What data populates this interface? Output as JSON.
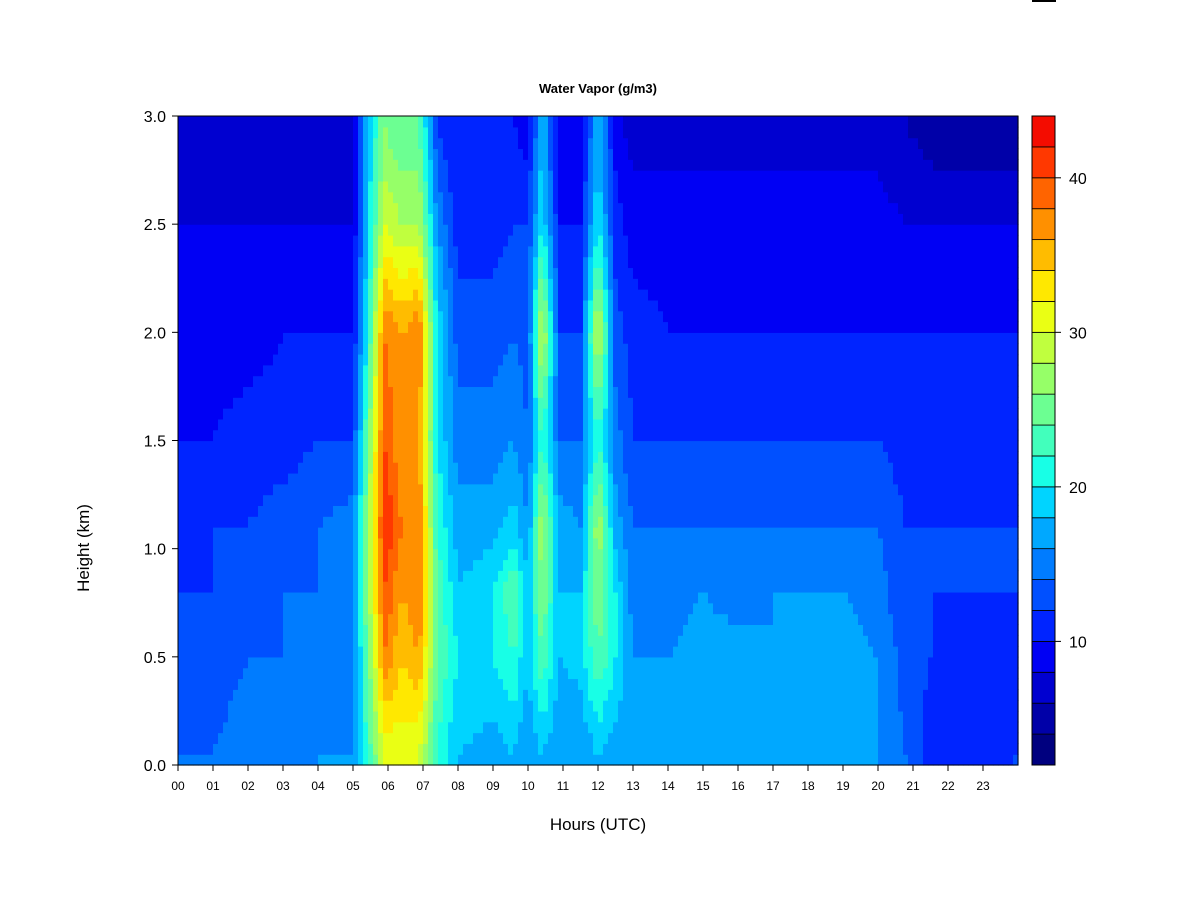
{
  "chart_data": {
    "type": "heatmap",
    "title": "Water Vapor (g/m3)",
    "xlabel": "Hours (UTC)",
    "ylabel": "Height (km)",
    "xlim": [
      0,
      24
    ],
    "ylim": [
      0,
      3.0
    ],
    "x_ticks": [
      "00",
      "01",
      "02",
      "03",
      "04",
      "05",
      "06",
      "07",
      "08",
      "09",
      "10",
      "11",
      "12",
      "13",
      "14",
      "15",
      "16",
      "17",
      "18",
      "19",
      "20",
      "21",
      "22",
      "23"
    ],
    "y_ticks": [
      "0.0",
      "0.5",
      "1.0",
      "1.5",
      "2.0",
      "2.5",
      "3.0"
    ],
    "colorbar": {
      "range": [
        2,
        44
      ],
      "tick_values": [
        10,
        20,
        30,
        40
      ],
      "tick_labels": [
        "10",
        "20",
        "30",
        "40"
      ],
      "levels": [
        2,
        4,
        6,
        8,
        10,
        12,
        14,
        16,
        18,
        20,
        22,
        24,
        26,
        28,
        30,
        32,
        34,
        36,
        38,
        40,
        42,
        44
      ],
      "colors": [
        "#00007f",
        "#0000a8",
        "#0000d0",
        "#0000f4",
        "#0024ff",
        "#0050ff",
        "#007cff",
        "#00a8ff",
        "#00d4ff",
        "#18ffe6",
        "#42ffbc",
        "#6cff92",
        "#96ff68",
        "#c0ff3e",
        "#eaff14",
        "#ffe800",
        "#ffbc00",
        "#ff9000",
        "#ff6400",
        "#ff3800",
        "#f40c00",
        "#c80000",
        "#9c0000",
        "#7f0000"
      ]
    },
    "heights_km": [
      0.05,
      0.5,
      0.8,
      1.1,
      1.5,
      2.0,
      2.5,
      2.95
    ],
    "hours": [
      0,
      1,
      2,
      3,
      4,
      5,
      5.4,
      5.9,
      6.4,
      6.9,
      7.4,
      8,
      9,
      9.6,
      10,
      10.4,
      10.9,
      11.5,
      12,
      12.5,
      13,
      14,
      15,
      16,
      17,
      18,
      19,
      20,
      20.8,
      21.5,
      22,
      23,
      23.8
    ],
    "values": [
      [
        14,
        12,
        12,
        11,
        10,
        9,
        8,
        6
      ],
      [
        14,
        13,
        12,
        12,
        10,
        9,
        8,
        6
      ],
      [
        15,
        14,
        13,
        12,
        11,
        9,
        8,
        6
      ],
      [
        15,
        14,
        14,
        13,
        11,
        10,
        8,
        6
      ],
      [
        16,
        14,
        14,
        14,
        12,
        10,
        8,
        7
      ],
      [
        16,
        15,
        15,
        15,
        12,
        10,
        8,
        7
      ],
      [
        22,
        24,
        26,
        26,
        24,
        20,
        18,
        18
      ],
      [
        30,
        38,
        40,
        42,
        40,
        38,
        30,
        26
      ],
      [
        31,
        34,
        36,
        38,
        36,
        36,
        28,
        24
      ],
      [
        30,
        36,
        38,
        38,
        36,
        38,
        28,
        24
      ],
      [
        22,
        24,
        24,
        22,
        20,
        20,
        16,
        12
      ],
      [
        18,
        20,
        18,
        17,
        15,
        13,
        11,
        10
      ],
      [
        17,
        20,
        20,
        17,
        15,
        13,
        11,
        10
      ],
      [
        18,
        22,
        24,
        19,
        16,
        14,
        12,
        10
      ],
      [
        16,
        18,
        18,
        16,
        14,
        13,
        12,
        9
      ],
      [
        18,
        24,
        26,
        28,
        22,
        30,
        20,
        18
      ],
      [
        16,
        18,
        18,
        17,
        14,
        12,
        10,
        8
      ],
      [
        16,
        19,
        18,
        16,
        14,
        12,
        10,
        8
      ],
      [
        18,
        24,
        26,
        28,
        22,
        30,
        20,
        18
      ],
      [
        17,
        20,
        20,
        17,
        15,
        13,
        11,
        9
      ],
      [
        16,
        16,
        15,
        14,
        12,
        11,
        9,
        7
      ],
      [
        17,
        16,
        15,
        14,
        12,
        10,
        9,
        7
      ],
      [
        17,
        17,
        16,
        14,
        12,
        10,
        9,
        7
      ],
      [
        17,
        17,
        15,
        14,
        12,
        10,
        9,
        7
      ],
      [
        17,
        16,
        16,
        14,
        12,
        10,
        9,
        7
      ],
      [
        17,
        16,
        16,
        14,
        12,
        10,
        9,
        7
      ],
      [
        17,
        17,
        16,
        14,
        12,
        10,
        9,
        7
      ],
      [
        16,
        16,
        15,
        14,
        12,
        10,
        9,
        7
      ],
      [
        14,
        13,
        12,
        12,
        11,
        10,
        8,
        6
      ],
      [
        11,
        12,
        12,
        12,
        11,
        10,
        8,
        5
      ],
      [
        10,
        11,
        12,
        12,
        11,
        10,
        8,
        4
      ],
      [
        10,
        11,
        12,
        12,
        11,
        10,
        8,
        4
      ],
      [
        12,
        11,
        12,
        12,
        11,
        10,
        8,
        4
      ]
    ]
  }
}
